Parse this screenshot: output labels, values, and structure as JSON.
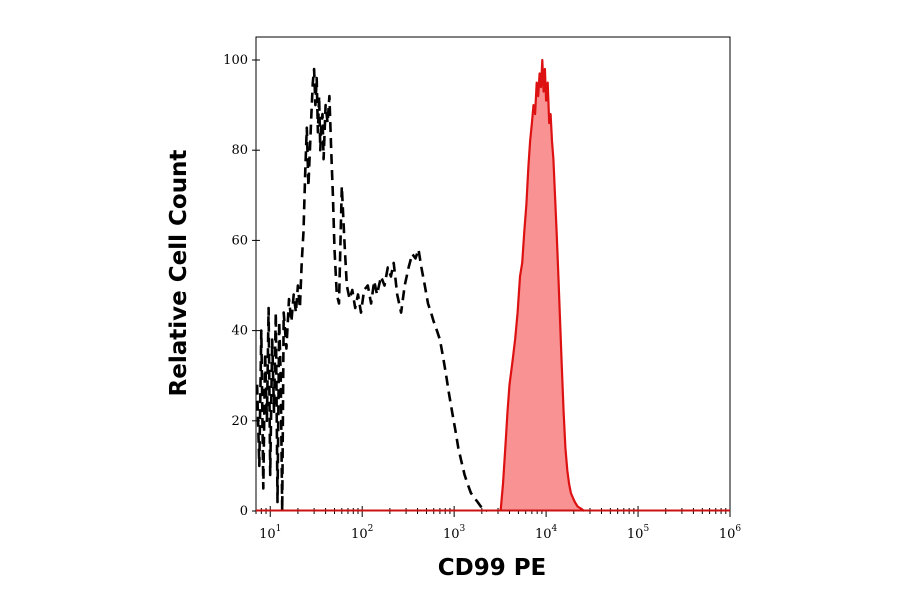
{
  "chart_data": {
    "type": "line",
    "title": "",
    "xlabel": "CD99 PE",
    "ylabel": "Relative Cell Count",
    "x_scale": "log",
    "xlim": [
      7,
      1000000
    ],
    "ylim": [
      0,
      100
    ],
    "grid": false,
    "legend": "none",
    "x_ticks": [
      {
        "base": "10",
        "exp": "1",
        "value": 10
      },
      {
        "base": "10",
        "exp": "2",
        "value": 100
      },
      {
        "base": "10",
        "exp": "3",
        "value": 1000
      },
      {
        "base": "10",
        "exp": "4",
        "value": 10000
      },
      {
        "base": "10",
        "exp": "5",
        "value": 100000
      },
      {
        "base": "10",
        "exp": "6",
        "value": 1000000
      }
    ],
    "y_ticks": [
      {
        "label": "0",
        "value": 0
      },
      {
        "label": "20",
        "value": 20
      },
      {
        "label": "40",
        "value": 40
      },
      {
        "label": "60",
        "value": 60
      },
      {
        "label": "80",
        "value": 80
      },
      {
        "label": "100",
        "value": 100
      }
    ],
    "series": [
      {
        "style": "dashed",
        "color": "#000000",
        "points": [
          [
            7.2,
            28
          ],
          [
            7.6,
            10
          ],
          [
            8.0,
            40
          ],
          [
            8.4,
            5
          ],
          [
            8.8,
            35
          ],
          [
            9.2,
            20
          ],
          [
            9.6,
            45
          ],
          [
            10.0,
            8
          ],
          [
            10.5,
            38
          ],
          [
            11.0,
            22
          ],
          [
            11.5,
            44
          ],
          [
            12.0,
            2
          ],
          [
            12.5,
            42
          ],
          [
            13.0,
            30
          ],
          [
            13.5,
            0
          ],
          [
            14.0,
            44
          ],
          [
            15.0,
            36
          ],
          [
            16.0,
            47
          ],
          [
            17.0,
            42
          ],
          [
            18.0,
            48
          ],
          [
            19.0,
            44
          ],
          [
            20.0,
            50
          ],
          [
            21.0,
            45
          ],
          [
            22.0,
            55
          ],
          [
            23.0,
            62
          ],
          [
            24.0,
            75
          ],
          [
            25.0,
            85
          ],
          [
            26.0,
            72
          ],
          [
            27.0,
            80
          ],
          [
            28.0,
            88
          ],
          [
            29.0,
            95
          ],
          [
            30.0,
            98
          ],
          [
            31.0,
            90
          ],
          [
            32.0,
            96
          ],
          [
            33.0,
            84
          ],
          [
            34.0,
            92
          ],
          [
            35.0,
            80
          ],
          [
            36.0,
            86
          ],
          [
            37.0,
            88
          ],
          [
            38.0,
            78
          ],
          [
            40.0,
            90
          ],
          [
            42.0,
            86
          ],
          [
            44.0,
            92
          ],
          [
            46.0,
            80
          ],
          [
            48.0,
            70
          ],
          [
            50.0,
            58
          ],
          [
            53.0,
            48
          ],
          [
            56.0,
            46
          ],
          [
            60.0,
            72
          ],
          [
            64.0,
            60
          ],
          [
            68.0,
            50
          ],
          [
            73.0,
            47
          ],
          [
            78.0,
            49
          ],
          [
            84.0,
            45
          ],
          [
            90.0,
            48
          ],
          [
            97.0,
            44
          ],
          [
            105.0,
            49
          ],
          [
            115.0,
            50
          ],
          [
            125.0,
            46
          ],
          [
            135.0,
            51
          ],
          [
            145.0,
            48
          ],
          [
            160.0,
            52
          ],
          [
            175.0,
            50
          ],
          [
            190.0,
            54
          ],
          [
            205.0,
            52
          ],
          [
            220.0,
            55
          ],
          [
            240.0,
            48
          ],
          [
            265.0,
            44
          ],
          [
            290.0,
            50
          ],
          [
            320.0,
            54
          ],
          [
            350.0,
            57
          ],
          [
            380.0,
            56
          ],
          [
            410.0,
            58
          ],
          [
            440.0,
            54
          ],
          [
            480.0,
            50
          ],
          [
            520.0,
            46
          ],
          [
            560.0,
            44
          ],
          [
            600.0,
            42
          ],
          [
            650.0,
            40
          ],
          [
            700.0,
            38
          ],
          [
            760.0,
            34
          ],
          [
            820.0,
            30
          ],
          [
            880.0,
            26
          ],
          [
            950.0,
            22
          ],
          [
            1030.0,
            18
          ],
          [
            1110.0,
            14
          ],
          [
            1200.0,
            11
          ],
          [
            1300.0,
            8
          ],
          [
            1400.0,
            6
          ],
          [
            1520.0,
            4
          ],
          [
            1650.0,
            3
          ],
          [
            1800.0,
            2
          ],
          [
            1950.0,
            1
          ],
          [
            2100.0,
            0.5
          ],
          [
            2300.0,
            0
          ]
        ]
      },
      {
        "style": "filled",
        "color": "#dd1111",
        "fill": "#f99393",
        "points": [
          [
            3200,
            0
          ],
          [
            3400,
            6
          ],
          [
            3600,
            14
          ],
          [
            3800,
            22
          ],
          [
            4000,
            28
          ],
          [
            4300,
            33
          ],
          [
            4600,
            38
          ],
          [
            4900,
            44
          ],
          [
            5200,
            52
          ],
          [
            5500,
            55
          ],
          [
            5800,
            62
          ],
          [
            6100,
            68
          ],
          [
            6400,
            76
          ],
          [
            6700,
            82
          ],
          [
            7000,
            86
          ],
          [
            7300,
            90
          ],
          [
            7600,
            88
          ],
          [
            7900,
            95
          ],
          [
            8200,
            92
          ],
          [
            8500,
            97
          ],
          [
            8800,
            94
          ],
          [
            9100,
            100
          ],
          [
            9400,
            93
          ],
          [
            9700,
            98
          ],
          [
            10000,
            91
          ],
          [
            10400,
            95
          ],
          [
            10800,
            86
          ],
          [
            11200,
            88
          ],
          [
            11600,
            82
          ],
          [
            12000,
            78
          ],
          [
            12500,
            70
          ],
          [
            13000,
            62
          ],
          [
            13600,
            52
          ],
          [
            14200,
            42
          ],
          [
            14800,
            32
          ],
          [
            15500,
            22
          ],
          [
            16200,
            14
          ],
          [
            17000,
            9
          ],
          [
            17800,
            6
          ],
          [
            18600,
            4
          ],
          [
            19500,
            3
          ],
          [
            20500,
            2
          ],
          [
            22000,
            1
          ],
          [
            24000,
            0.5
          ],
          [
            26000,
            0
          ]
        ]
      }
    ]
  }
}
